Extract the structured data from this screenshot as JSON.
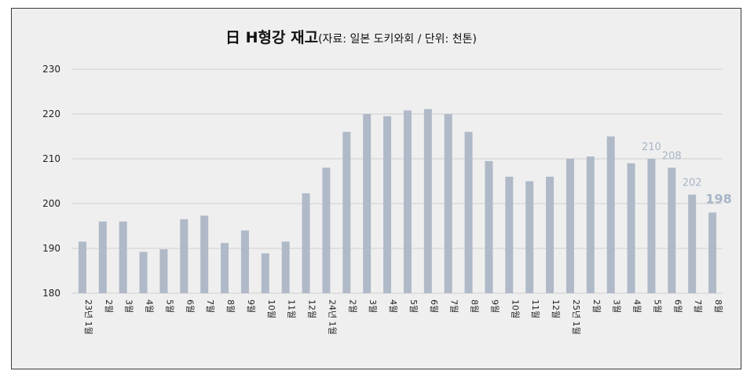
{
  "chart_data": {
    "type": "bar",
    "title": "日 H형강 재고",
    "subtitle": "(자료: 일본 도키와회 / 단위: 천톤)",
    "categories": [
      "23년 1월",
      "2월",
      "3월",
      "4월",
      "5월",
      "6월",
      "7월",
      "8월",
      "9월",
      "10월",
      "11월",
      "12월",
      "24년 1월",
      "2월",
      "3월",
      "4월",
      "5월",
      "6월",
      "7월",
      "8월",
      "9월",
      "10월",
      "11월",
      "12월",
      "25년 1월",
      "2월",
      "3월",
      "4월",
      "5월",
      "6월",
      "7월",
      "8월"
    ],
    "values": [
      191.5,
      196,
      196,
      189.2,
      189.8,
      196.5,
      197.3,
      191.2,
      194,
      188.9,
      191.5,
      202.3,
      208,
      216,
      220,
      219.5,
      220.8,
      221.1,
      220,
      216,
      209.5,
      206,
      205,
      206,
      210,
      210.5,
      215,
      209,
      210,
      208,
      202,
      198
    ],
    "data_labels": [
      {
        "index": 28,
        "text": "210"
      },
      {
        "index": 29,
        "text": "208"
      },
      {
        "index": 30,
        "text": "202"
      },
      {
        "index": 31,
        "text": "198"
      }
    ],
    "ylim": [
      180,
      230
    ],
    "yticks": [
      "180",
      "190",
      "200",
      "210",
      "220",
      "230"
    ],
    "grid": true,
    "legend": "none",
    "colors": {
      "bar": "#b0b9c8",
      "label": "#a7b5c7",
      "grid": "#cfcfcf",
      "background": "#efefef"
    }
  }
}
